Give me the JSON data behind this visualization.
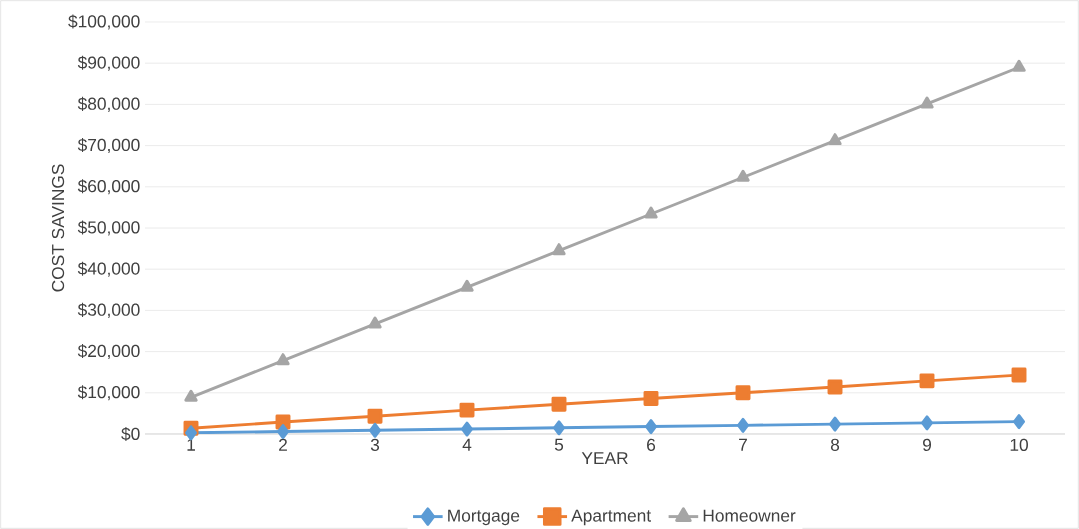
{
  "chart_data": {
    "type": "line",
    "xlabel": "YEAR",
    "ylabel": "COST SAVINGS",
    "categories": [
      "1",
      "2",
      "3",
      "4",
      "5",
      "6",
      "7",
      "8",
      "9",
      "10"
    ],
    "series": [
      {
        "name": "Mortgage",
        "color": "#5b9bd5",
        "marker": "diamond",
        "values": [
          300,
          600,
          900,
          1200,
          1500,
          1800,
          2100,
          2400,
          2700,
          3000
        ]
      },
      {
        "name": "Apartment",
        "color": "#ed7d31",
        "marker": "square",
        "values": [
          1400,
          2900,
          4300,
          5800,
          7200,
          8600,
          10000,
          11400,
          12900,
          14300
        ]
      },
      {
        "name": "Homeowner",
        "color": "#a5a5a5",
        "marker": "triangle",
        "values": [
          8900,
          17800,
          26700,
          35600,
          44500,
          53400,
          62300,
          71200,
          80100,
          89000
        ]
      }
    ],
    "ylim": [
      0,
      100000
    ],
    "yticks": [
      {
        "value": 0,
        "label": "$0"
      },
      {
        "value": 10000,
        "label": "$10,000"
      },
      {
        "value": 20000,
        "label": "$20,000"
      },
      {
        "value": 30000,
        "label": "$30,000"
      },
      {
        "value": 40000,
        "label": "$40,000"
      },
      {
        "value": 50000,
        "label": "$50,000"
      },
      {
        "value": 60000,
        "label": "$60,000"
      },
      {
        "value": 70000,
        "label": "$70,000"
      },
      {
        "value": 80000,
        "label": "$80,000"
      },
      {
        "value": 90000,
        "label": "$90,000"
      },
      {
        "value": 100000,
        "label": "$100,000"
      }
    ],
    "grid": "y",
    "legend": "bottom"
  }
}
